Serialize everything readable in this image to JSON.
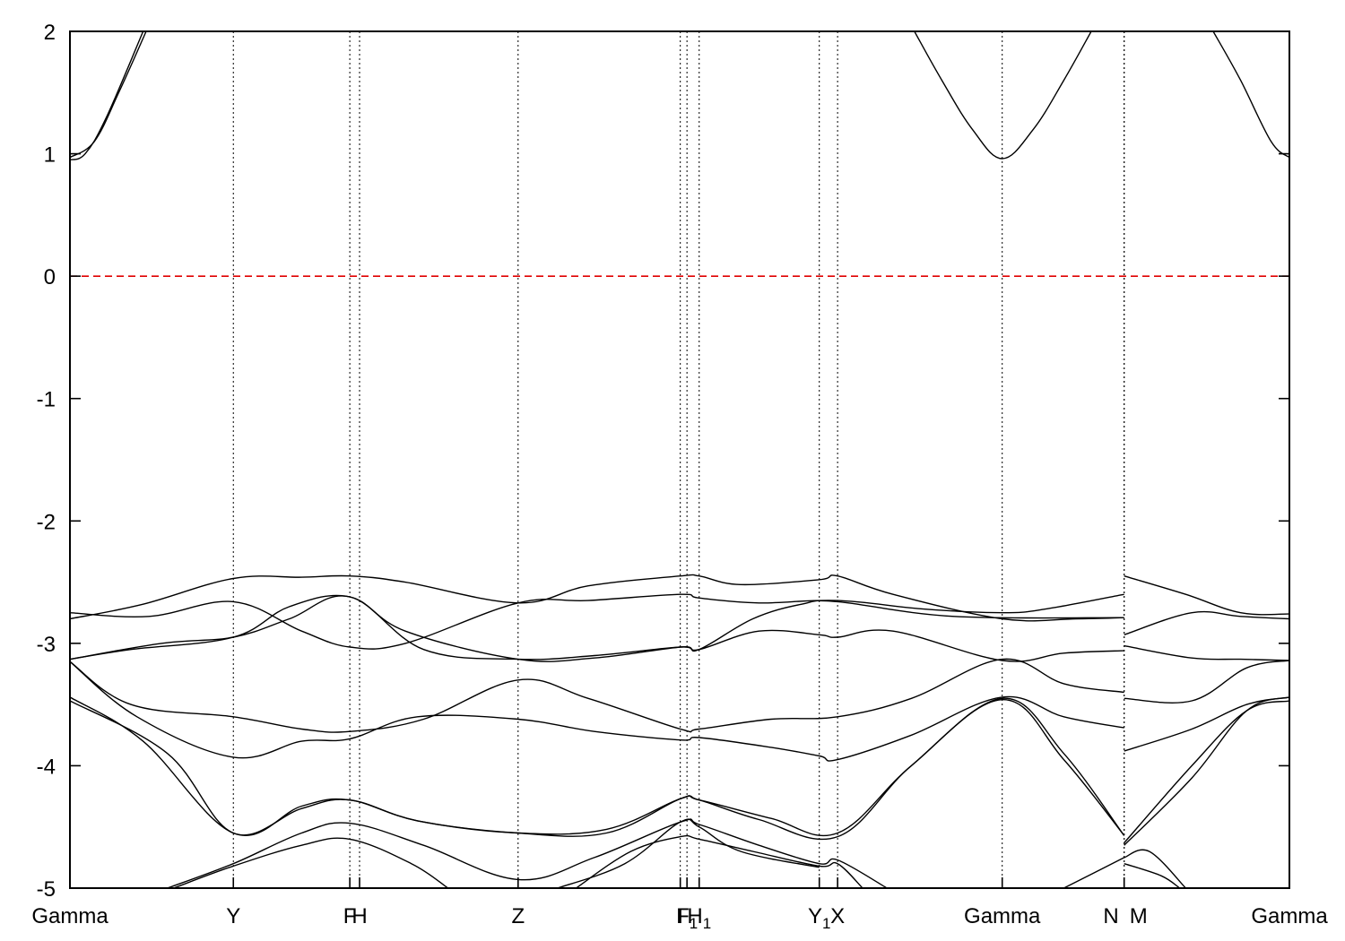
{
  "chart_data": {
    "type": "line",
    "title": "",
    "xlabel": "",
    "ylabel": "",
    "ylim": [
      -5,
      2
    ],
    "yticks": [
      -5,
      -4,
      -3,
      -2,
      -1,
      0,
      1,
      2
    ],
    "grid": false,
    "legend": "none",
    "fermi_level": {
      "y": 0,
      "color": "#e00000",
      "style": "dashed"
    },
    "xlim": [
      0,
      20
    ],
    "kpoints": [
      {
        "x": 0.0,
        "label": "Gamma",
        "sub": ""
      },
      {
        "x": 2.68,
        "label": "Y",
        "sub": ""
      },
      {
        "x": 4.59,
        "label": "F",
        "sub": ""
      },
      {
        "x": 4.75,
        "label": "H",
        "sub": ""
      },
      {
        "x": 7.35,
        "label": "Z",
        "sub": ""
      },
      {
        "x": 10.01,
        "label": "I",
        "sub": ""
      },
      {
        "x": 10.12,
        "label": "F",
        "sub": "1"
      },
      {
        "x": 10.32,
        "label": "H",
        "sub": "1"
      },
      {
        "x": 12.29,
        "label": "Y",
        "sub": "1"
      },
      {
        "x": 12.59,
        "label": "X",
        "sub": ""
      },
      {
        "x": 15.29,
        "label": "Gamma",
        "sub": ""
      },
      {
        "x": 17.29,
        "label": "N",
        "sub": ""
      },
      {
        "x": 17.29,
        "label": "M",
        "sub": ""
      },
      {
        "x": 20.0,
        "label": "Gamma",
        "sub": ""
      }
    ],
    "series": [
      {
        "values": [
          [
            0,
            0.97
          ],
          [
            0.4,
            1.1
          ],
          [
            0.8,
            1.5
          ],
          [
            1.25,
            2.0
          ]
        ]
      },
      {
        "values": [
          [
            0,
            0.95
          ],
          [
            0.25,
            1.0
          ],
          [
            0.6,
            1.3
          ],
          [
            1.2,
            2.0
          ]
        ]
      },
      {
        "values": [
          [
            13.85,
            2.0
          ],
          [
            14.3,
            1.6
          ],
          [
            14.8,
            1.2
          ],
          [
            15.29,
            0.96
          ],
          [
            15.8,
            1.2
          ],
          [
            16.3,
            1.6
          ],
          [
            16.75,
            2.0
          ]
        ]
      },
      {
        "values": [
          [
            18.75,
            2.0
          ],
          [
            19.2,
            1.6
          ],
          [
            19.7,
            1.1
          ],
          [
            20,
            0.97
          ]
        ]
      },
      {
        "values": [
          [
            0,
            -2.8
          ],
          [
            1.2,
            -2.68
          ],
          [
            2.68,
            -2.47
          ],
          [
            3.8,
            -2.46
          ],
          [
            4.59,
            -2.45
          ],
          [
            5.5,
            -2.5
          ],
          [
            7.35,
            -2.67
          ],
          [
            8.5,
            -2.53
          ],
          [
            10.01,
            -2.45
          ],
          [
            10.32,
            -2.45
          ],
          [
            11.0,
            -2.52
          ],
          [
            12.29,
            -2.48
          ],
          [
            12.59,
            -2.45
          ],
          [
            13.5,
            -2.6
          ],
          [
            15.29,
            -2.8
          ],
          [
            16.5,
            -2.8
          ],
          [
            17.29,
            -2.79
          ]
        ]
      },
      {
        "values": [
          [
            0,
            -2.75
          ],
          [
            1.3,
            -2.78
          ],
          [
            2.68,
            -2.66
          ],
          [
            3.8,
            -2.9
          ],
          [
            4.59,
            -3.03
          ],
          [
            5.5,
            -3.0
          ],
          [
            7.35,
            -2.67
          ],
          [
            8.5,
            -2.65
          ],
          [
            10.01,
            -2.6
          ],
          [
            10.32,
            -2.63
          ],
          [
            11.3,
            -2.67
          ],
          [
            12.59,
            -2.65
          ],
          [
            14.0,
            -2.72
          ],
          [
            15.29,
            -2.75
          ],
          [
            16.0,
            -2.72
          ],
          [
            17.29,
            -2.6
          ]
        ]
      },
      {
        "values": [
          [
            0,
            -3.13
          ],
          [
            1.5,
            -3.0
          ],
          [
            2.68,
            -2.95
          ],
          [
            3.6,
            -2.8
          ],
          [
            4.59,
            -2.62
          ],
          [
            5.8,
            -3.05
          ],
          [
            7.35,
            -3.13
          ],
          [
            8.6,
            -3.1
          ],
          [
            10.01,
            -3.03
          ],
          [
            10.32,
            -3.05
          ],
          [
            11.2,
            -2.8
          ],
          [
            12.0,
            -2.68
          ],
          [
            12.59,
            -2.66
          ],
          [
            14.5,
            -2.78
          ],
          [
            17.29,
            -2.79
          ]
        ]
      },
      {
        "values": [
          [
            0,
            -3.13
          ],
          [
            1.0,
            -3.05
          ],
          [
            2.68,
            -2.95
          ],
          [
            3.6,
            -2.7
          ],
          [
            4.59,
            -2.62
          ],
          [
            5.5,
            -2.9
          ],
          [
            7.35,
            -3.13
          ],
          [
            8.6,
            -3.12
          ],
          [
            10.01,
            -3.03
          ],
          [
            10.32,
            -3.05
          ],
          [
            11.3,
            -2.9
          ],
          [
            12.29,
            -2.93
          ],
          [
            12.59,
            -2.95
          ],
          [
            13.5,
            -2.9
          ],
          [
            15.29,
            -3.14
          ],
          [
            16.3,
            -3.08
          ],
          [
            17.29,
            -3.06
          ]
        ]
      },
      {
        "values": [
          [
            0,
            -3.15
          ],
          [
            1.0,
            -3.5
          ],
          [
            2.68,
            -3.6
          ],
          [
            3.8,
            -3.7
          ],
          [
            4.59,
            -3.72
          ],
          [
            5.8,
            -3.62
          ],
          [
            7.35,
            -3.3
          ],
          [
            8.5,
            -3.45
          ],
          [
            10.01,
            -3.7
          ],
          [
            10.32,
            -3.7
          ],
          [
            11.5,
            -3.62
          ],
          [
            12.59,
            -3.6
          ],
          [
            13.8,
            -3.45
          ],
          [
            15.29,
            -3.13
          ],
          [
            16.3,
            -3.33
          ],
          [
            17.29,
            -3.4
          ]
        ]
      },
      {
        "values": [
          [
            0,
            -3.15
          ],
          [
            1.1,
            -3.6
          ],
          [
            2.68,
            -3.93
          ],
          [
            3.8,
            -3.8
          ],
          [
            4.59,
            -3.78
          ],
          [
            5.7,
            -3.6
          ],
          [
            7.35,
            -3.62
          ],
          [
            8.6,
            -3.72
          ],
          [
            10.01,
            -3.79
          ],
          [
            10.32,
            -3.77
          ],
          [
            11.5,
            -3.85
          ],
          [
            12.29,
            -3.92
          ],
          [
            12.59,
            -3.95
          ],
          [
            13.8,
            -3.75
          ],
          [
            15.29,
            -3.44
          ],
          [
            16.3,
            -3.6
          ],
          [
            17.29,
            -3.69
          ]
        ]
      },
      {
        "values": [
          [
            0,
            -3.44
          ],
          [
            1.2,
            -3.8
          ],
          [
            2.68,
            -4.55
          ],
          [
            3.8,
            -4.33
          ],
          [
            4.59,
            -4.28
          ],
          [
            5.7,
            -4.45
          ],
          [
            7.35,
            -4.55
          ],
          [
            8.8,
            -4.55
          ],
          [
            10.01,
            -4.27
          ],
          [
            10.32,
            -4.28
          ],
          [
            11.5,
            -4.43
          ],
          [
            12.59,
            -4.55
          ],
          [
            13.8,
            -4.0
          ],
          [
            15.29,
            -3.45
          ],
          [
            16.3,
            -3.9
          ],
          [
            17.29,
            -4.57
          ]
        ]
      },
      {
        "values": [
          [
            0,
            -3.47
          ],
          [
            1.6,
            -3.9
          ],
          [
            2.68,
            -4.55
          ],
          [
            3.8,
            -4.35
          ],
          [
            4.59,
            -4.28
          ],
          [
            5.7,
            -4.45
          ],
          [
            7.35,
            -4.55
          ],
          [
            8.8,
            -4.52
          ],
          [
            10.01,
            -4.27
          ],
          [
            10.32,
            -4.28
          ],
          [
            11.3,
            -4.44
          ],
          [
            12.59,
            -4.58
          ],
          [
            13.8,
            -4.0
          ],
          [
            15.29,
            -3.46
          ],
          [
            16.3,
            -3.95
          ],
          [
            17.29,
            -4.57
          ]
        ]
      },
      {
        "values": [
          [
            1.6,
            -5.0
          ],
          [
            2.68,
            -4.8
          ],
          [
            3.8,
            -4.55
          ],
          [
            4.59,
            -4.47
          ],
          [
            5.8,
            -4.65
          ],
          [
            7.35,
            -4.93
          ],
          [
            8.6,
            -4.75
          ],
          [
            10.01,
            -4.46
          ],
          [
            10.32,
            -4.48
          ],
          [
            11.3,
            -4.65
          ],
          [
            12.29,
            -4.8
          ],
          [
            12.59,
            -4.77
          ],
          [
            13.4,
            -5.0
          ]
        ]
      },
      {
        "values": [
          [
            1.7,
            -5.0
          ],
          [
            2.68,
            -4.82
          ],
          [
            3.8,
            -4.65
          ],
          [
            4.59,
            -4.6
          ],
          [
            5.6,
            -4.8
          ],
          [
            6.2,
            -5.0
          ]
        ]
      },
      {
        "values": [
          [
            8.3,
            -5.0
          ],
          [
            9.2,
            -4.7
          ],
          [
            10.01,
            -4.58
          ],
          [
            10.32,
            -4.6
          ],
          [
            11.2,
            -4.7
          ],
          [
            12.29,
            -4.82
          ],
          [
            12.59,
            -4.8
          ],
          [
            13.0,
            -5.0
          ]
        ]
      },
      {
        "values": [
          [
            8.0,
            -5.0
          ],
          [
            9.1,
            -4.8
          ],
          [
            10.01,
            -4.46
          ],
          [
            10.32,
            -4.5
          ],
          [
            11.0,
            -4.7
          ],
          [
            12.29,
            -4.83
          ]
        ]
      },
      {
        "values": [
          [
            16.3,
            -5.0
          ],
          [
            17.29,
            -4.75
          ]
        ]
      },
      {
        "values": [
          [
            17.29,
            -2.45
          ],
          [
            18.3,
            -2.6
          ],
          [
            19.2,
            -2.75
          ],
          [
            20,
            -2.76
          ]
        ]
      },
      {
        "values": [
          [
            17.29,
            -2.93
          ],
          [
            18.4,
            -2.75
          ],
          [
            19.2,
            -2.78
          ],
          [
            20,
            -2.8
          ]
        ]
      },
      {
        "values": [
          [
            17.29,
            -3.02
          ],
          [
            18.4,
            -3.12
          ],
          [
            19.2,
            -3.13
          ],
          [
            20,
            -3.14
          ]
        ]
      },
      {
        "values": [
          [
            17.29,
            -3.45
          ],
          [
            18.4,
            -3.47
          ],
          [
            19.3,
            -3.2
          ],
          [
            20,
            -3.14
          ]
        ]
      },
      {
        "values": [
          [
            17.29,
            -3.88
          ],
          [
            18.4,
            -3.7
          ],
          [
            19.3,
            -3.5
          ],
          [
            20,
            -3.44
          ]
        ]
      },
      {
        "values": [
          [
            17.29,
            -4.63
          ],
          [
            18.4,
            -4.0
          ],
          [
            19.3,
            -3.55
          ],
          [
            20,
            -3.47
          ]
        ]
      },
      {
        "values": [
          [
            17.29,
            -4.65
          ],
          [
            18.4,
            -4.1
          ],
          [
            19.3,
            -3.55
          ],
          [
            20,
            -3.44
          ]
        ]
      },
      {
        "values": [
          [
            17.29,
            -4.8
          ],
          [
            17.9,
            -4.9
          ],
          [
            18.2,
            -5.0
          ]
        ]
      },
      {
        "values": [
          [
            17.29,
            -4.75
          ],
          [
            17.7,
            -4.7
          ],
          [
            18.3,
            -5.0
          ]
        ]
      }
    ]
  }
}
